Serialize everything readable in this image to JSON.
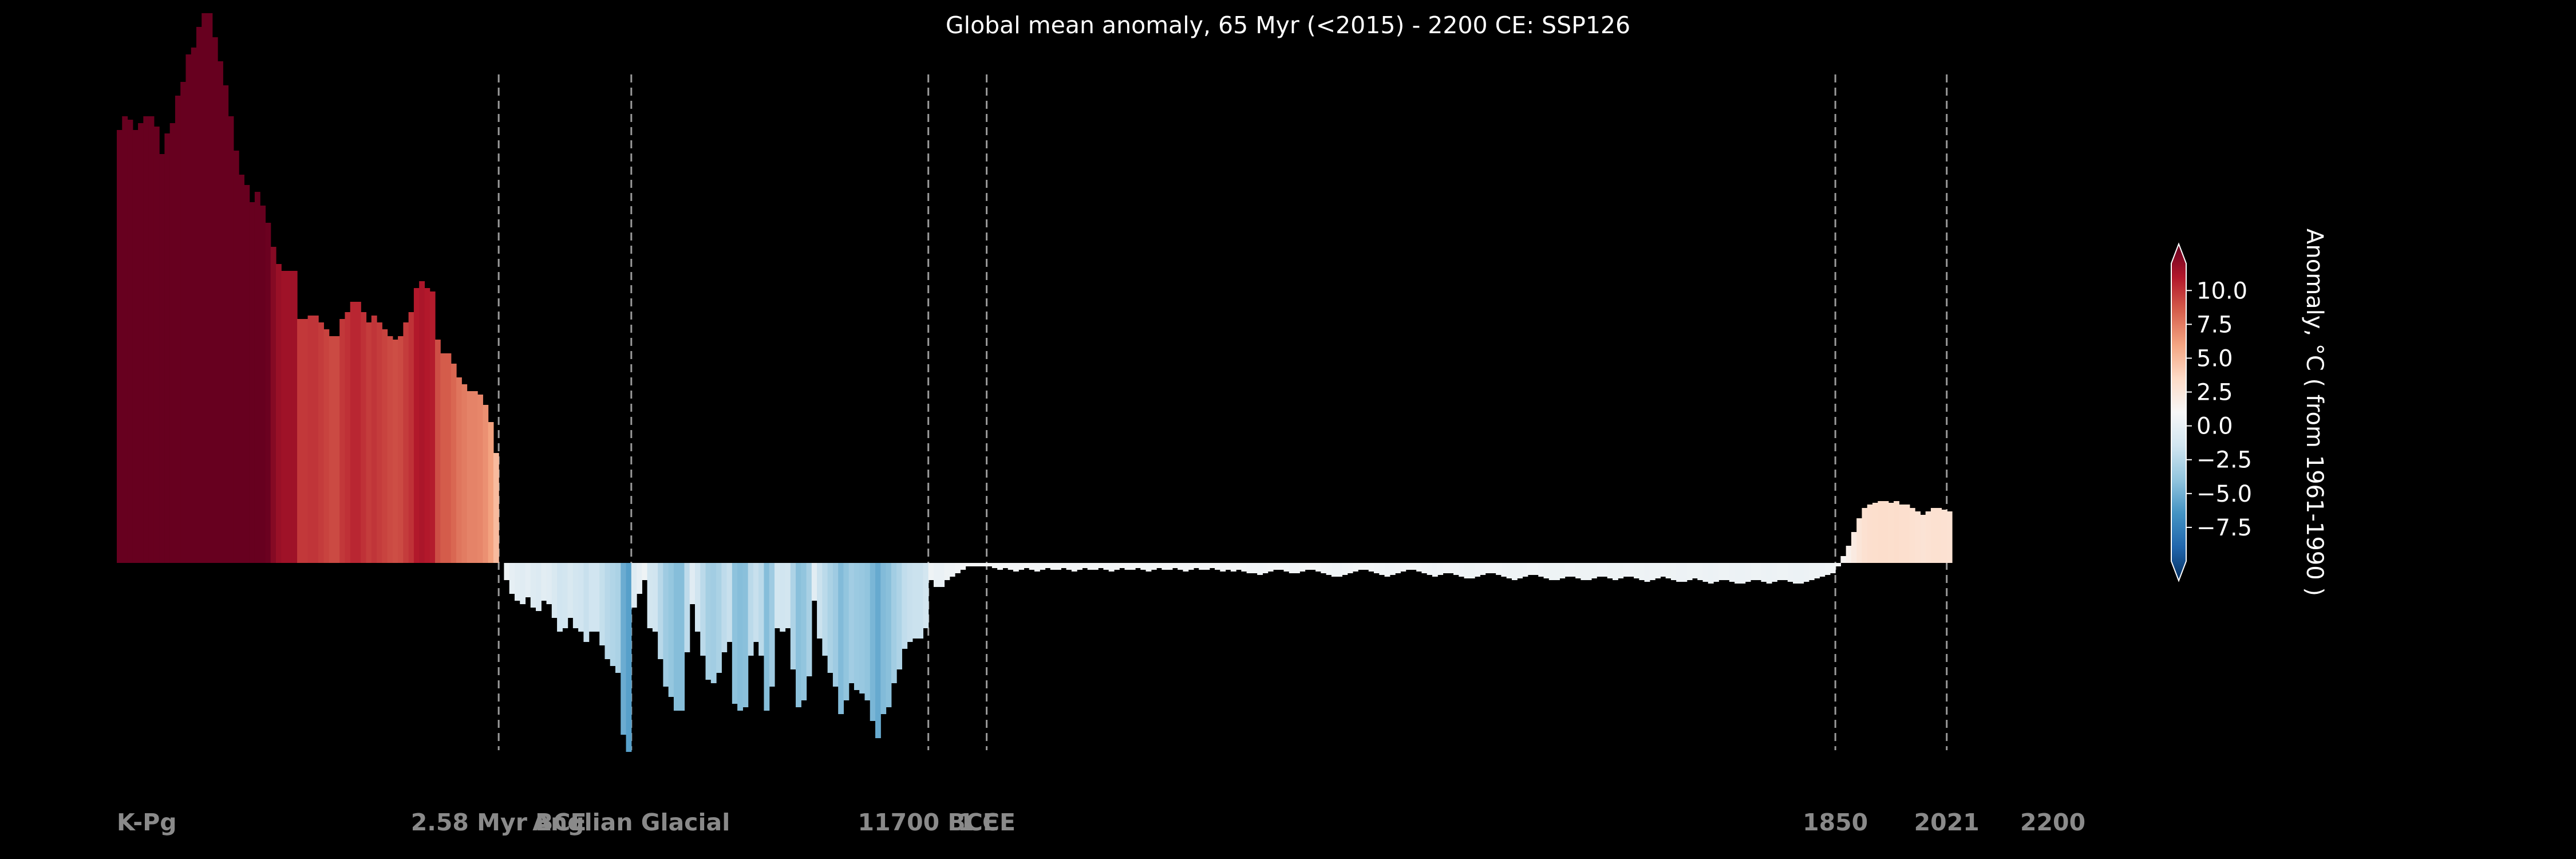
{
  "chart_data": {
    "type": "bar",
    "title": "Global mean anomaly, 65 Myr (<2015) - 2200 CE: SSP126",
    "colorbar": {
      "label": "Anomaly, °C ( from 1961-1990 )",
      "ticks": [
        "10.0",
        "7.5",
        "5.0",
        "2.5",
        "0.0",
        "−2.5",
        "−5.0",
        "−7.5"
      ],
      "tick_values": [
        10,
        7.5,
        5,
        2.5,
        0,
        -2.5,
        -5,
        -7.5
      ],
      "range": [
        -10,
        12
      ],
      "colormap": "RdBu_r",
      "extend": "both"
    },
    "era_markers": [
      {
        "label": "K-Pg",
        "index": 0,
        "dashed": false
      },
      {
        "label": "2.58 Myr BCE",
        "index": 72,
        "dashed": true
      },
      {
        "label": "Anglian Glacial",
        "index": 97,
        "dashed": true
      },
      {
        "label": "11700 BCE",
        "index": 153,
        "dashed": true
      },
      {
        "label": "1 CE",
        "index": 164,
        "dashed": true
      },
      {
        "label": "1850",
        "index": 324,
        "dashed": true
      },
      {
        "label": "2021",
        "index": 345,
        "dashed": true
      },
      {
        "label": "2200",
        "index": 365,
        "dashed": false
      }
    ],
    "values": [
      12.6,
      13.0,
      12.9,
      12.6,
      12.8,
      13.0,
      13.0,
      12.7,
      11.9,
      12.5,
      12.8,
      13.6,
      14.0,
      14.8,
      15.0,
      15.6,
      16.0,
      16.0,
      15.3,
      14.6,
      13.9,
      13.0,
      12.0,
      11.3,
      11.0,
      10.5,
      10.8,
      10.4,
      9.9,
      9.2,
      8.7,
      8.5,
      8.5,
      8.5,
      7.1,
      7.1,
      7.2,
      7.2,
      7.0,
      6.8,
      6.6,
      6.6,
      7.1,
      7.3,
      7.6,
      7.6,
      7.3,
      7.0,
      7.2,
      7.0,
      6.8,
      6.6,
      6.5,
      6.6,
      7.0,
      7.3,
      8.0,
      8.2,
      8.0,
      7.9,
      6.5,
      6.1,
      6.1,
      5.8,
      5.4,
      5.2,
      5.0,
      5.0,
      4.9,
      4.6,
      4.1,
      3.2,
      0.0,
      -0.5,
      -0.9,
      -1.1,
      -1.2,
      -1.0,
      -1.3,
      -1.4,
      -1.1,
      -1.2,
      -1.6,
      -2.0,
      -1.9,
      -1.6,
      -1.9,
      -2.0,
      -2.3,
      -2.0,
      -2.0,
      -2.4,
      -2.8,
      -3.0,
      -3.2,
      -5.0,
      -5.5,
      -1.3,
      -0.9,
      -0.5,
      -1.9,
      -2.0,
      -2.8,
      -3.6,
      -3.9,
      -4.3,
      -4.3,
      -2.6,
      -1.2,
      -2.0,
      -2.7,
      -3.4,
      -3.5,
      -3.2,
      -2.6,
      -2.3,
      -4.1,
      -4.3,
      -4.2,
      -2.7,
      -2.3,
      -2.7,
      -4.3,
      -3.6,
      -1.9,
      -2.0,
      -1.9,
      -3.1,
      -4.2,
      -4.0,
      -3.3,
      -1.1,
      -2.2,
      -2.7,
      -3.2,
      -3.6,
      -4.4,
      -4.0,
      -3.5,
      -3.7,
      -3.8,
      -4.0,
      -4.6,
      -5.1,
      -4.4,
      -4.2,
      -3.5,
      -3.1,
      -2.5,
      -2.3,
      -2.2,
      -2.2,
      -1.9,
      -0.5,
      -0.7,
      -0.7,
      -0.5,
      -0.4,
      -0.3,
      -0.2,
      -0.1,
      -0.1,
      -0.1,
      -0.1,
      -0.1,
      -0.15,
      -0.2,
      -0.15,
      -0.2,
      -0.25,
      -0.2,
      -0.15,
      -0.2,
      -0.25,
      -0.2,
      -0.15,
      -0.2,
      -0.2,
      -0.15,
      -0.2,
      -0.25,
      -0.2,
      -0.15,
      -0.2,
      -0.2,
      -0.15,
      -0.2,
      -0.25,
      -0.2,
      -0.15,
      -0.2,
      -0.2,
      -0.15,
      -0.2,
      -0.25,
      -0.2,
      -0.15,
      -0.2,
      -0.2,
      -0.15,
      -0.2,
      -0.25,
      -0.2,
      -0.15,
      -0.2,
      -0.2,
      -0.15,
      -0.2,
      -0.25,
      -0.2,
      -0.25,
      -0.2,
      -0.25,
      -0.3,
      -0.3,
      -0.35,
      -0.3,
      -0.25,
      -0.2,
      -0.2,
      -0.25,
      -0.3,
      -0.3,
      -0.25,
      -0.2,
      -0.2,
      -0.25,
      -0.3,
      -0.35,
      -0.4,
      -0.4,
      -0.35,
      -0.3,
      -0.25,
      -0.2,
      -0.2,
      -0.25,
      -0.3,
      -0.35,
      -0.4,
      -0.35,
      -0.3,
      -0.25,
      -0.2,
      -0.2,
      -0.25,
      -0.3,
      -0.35,
      -0.4,
      -0.35,
      -0.3,
      -0.3,
      -0.35,
      -0.4,
      -0.45,
      -0.45,
      -0.4,
      -0.35,
      -0.3,
      -0.3,
      -0.35,
      -0.4,
      -0.45,
      -0.5,
      -0.45,
      -0.4,
      -0.35,
      -0.35,
      -0.4,
      -0.45,
      -0.5,
      -0.5,
      -0.45,
      -0.4,
      -0.4,
      -0.45,
      -0.5,
      -0.5,
      -0.45,
      -0.4,
      -0.4,
      -0.45,
      -0.5,
      -0.45,
      -0.4,
      -0.4,
      -0.45,
      -0.5,
      -0.55,
      -0.5,
      -0.45,
      -0.4,
      -0.45,
      -0.5,
      -0.55,
      -0.55,
      -0.5,
      -0.45,
      -0.5,
      -0.55,
      -0.6,
      -0.55,
      -0.5,
      -0.5,
      -0.55,
      -0.6,
      -0.6,
      -0.55,
      -0.5,
      -0.5,
      -0.55,
      -0.6,
      -0.55,
      -0.5,
      -0.5,
      -0.55,
      -0.6,
      -0.6,
      -0.55,
      -0.5,
      -0.45,
      -0.4,
      -0.35,
      -0.3,
      -0.1,
      0.2,
      0.5,
      0.9,
      1.3,
      1.6,
      1.7,
      1.75,
      1.8,
      1.8,
      1.75,
      1.8,
      1.7,
      1.7,
      1.6,
      1.5,
      1.4,
      1.5,
      1.6,
      1.6,
      1.55,
      1.5
    ]
  }
}
